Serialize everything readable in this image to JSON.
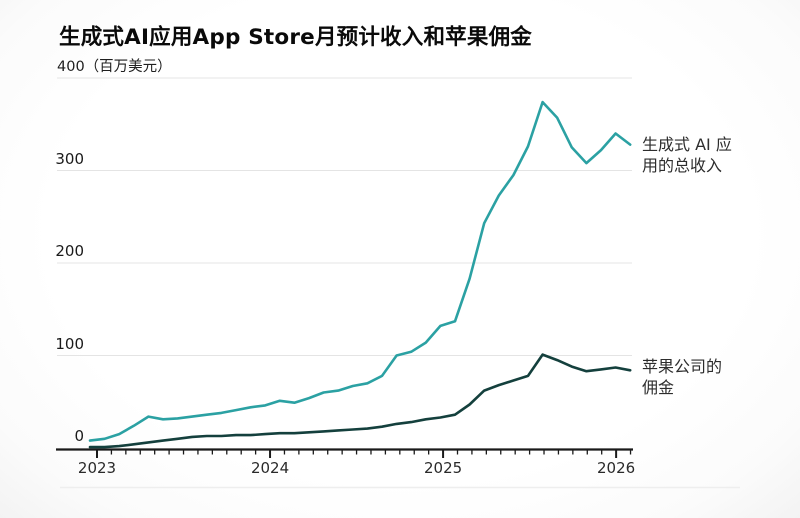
{
  "chart_data": {
    "type": "line",
    "title": "生成式AI应用App Store月预计收入和苹果佣金",
    "y_axis": {
      "top_label": "400（百万美元）",
      "unit": "百万美元",
      "ticks": [
        0,
        100,
        200,
        300,
        400
      ],
      "tick_labels": [
        "0",
        "100",
        "200",
        "300"
      ],
      "ylim": [
        0,
        400
      ],
      "grid": true
    },
    "x_axis": {
      "year_labels": [
        "2023",
        "2024",
        "2025",
        "2026"
      ],
      "minor_tick_interval": "month"
    },
    "x": [
      "2023-01",
      "2023-02",
      "2023-03",
      "2023-04",
      "2023-05",
      "2023-06",
      "2023-07",
      "2023-08",
      "2023-09",
      "2023-10",
      "2023-11",
      "2023-12",
      "2024-01",
      "2024-02",
      "2024-03",
      "2024-04",
      "2024-05",
      "2024-06",
      "2024-07",
      "2024-08",
      "2024-09",
      "2024-10",
      "2024-11",
      "2024-12",
      "2025-01",
      "2025-02",
      "2025-03",
      "2025-04",
      "2025-05",
      "2025-06",
      "2025-07",
      "2025-08",
      "2025-09",
      "2025-10",
      "2025-11",
      "2025-12",
      "2026-01",
      "2026-02"
    ],
    "series": [
      {
        "name": "生成式 AI 应用的总收入",
        "label_line1": "生成式 AI 应",
        "label_line2": "用的总收入",
        "color": "#2ba1a3",
        "values": [
          8,
          10,
          15,
          24,
          34,
          31,
          32,
          34,
          36,
          38,
          41,
          44,
          46,
          51,
          49,
          54,
          60,
          62,
          67,
          70,
          78,
          100,
          104,
          114,
          132,
          137,
          183,
          243,
          273,
          295,
          326,
          374,
          357,
          325,
          308,
          322,
          340,
          328
        ]
      },
      {
        "name": "苹果公司的佣金",
        "label_line1": "苹果公司的",
        "label_line2": "佣金",
        "color": "#14403d",
        "values": [
          1,
          1,
          2,
          4,
          6,
          8,
          10,
          12,
          13,
          13,
          14,
          14,
          15,
          16,
          16,
          17,
          18,
          19,
          20,
          21,
          23,
          26,
          28,
          31,
          33,
          36,
          47,
          62,
          68,
          73,
          78,
          101,
          95,
          88,
          83,
          85,
          87,
          84
        ]
      }
    ],
    "colors": {
      "grid": "#e4e4e4",
      "axis": "#1a1a1a",
      "revenue_line": "#2ba1a3",
      "commission_line": "#14403d"
    }
  }
}
